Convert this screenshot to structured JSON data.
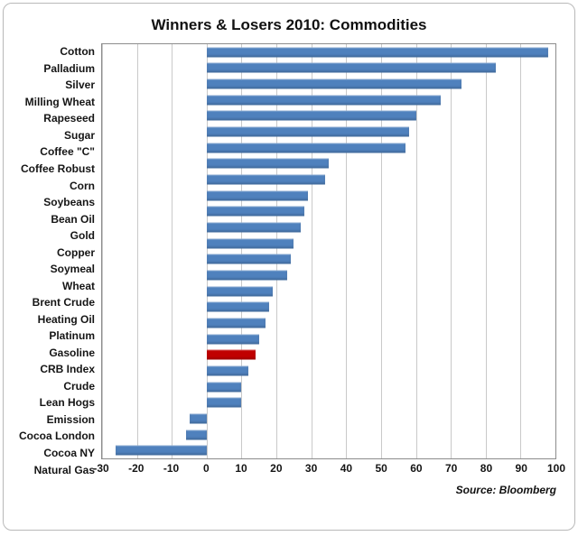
{
  "colors": {
    "bar": "#4f81bd",
    "highlight": "#c00000",
    "gridline": "#c9c9c9"
  },
  "chart_data": {
    "type": "bar",
    "orientation": "horizontal",
    "title": "Winners & Losers 2010: Commodities",
    "source": "Source: Bloomberg",
    "xlabel": "",
    "ylabel": "",
    "xlim": [
      -30,
      100
    ],
    "xticks": [
      -30,
      -20,
      -10,
      0,
      10,
      20,
      30,
      40,
      50,
      60,
      70,
      80,
      90,
      100
    ],
    "grid": true,
    "highlight_category": "CRB Index",
    "categories": [
      "Cotton",
      "Palladium",
      "Silver",
      "Milling Wheat",
      "Rapeseed",
      "Sugar",
      "Coffee \"C\"",
      "Coffee Robust",
      "Corn",
      "Soybeans",
      "Bean Oil",
      "Gold",
      "Copper",
      "Soymeal",
      "Wheat",
      "Brent Crude",
      "Heating Oil",
      "Platinum",
      "Gasoline",
      "CRB Index",
      "Crude",
      "Lean Hogs",
      "Emission",
      "Cocoa London",
      "Cocoa NY",
      "Natural Gas"
    ],
    "values": [
      98,
      83,
      73,
      67,
      60,
      58,
      57,
      35,
      34,
      29,
      28,
      27,
      25,
      24,
      23,
      19,
      18,
      17,
      15,
      14,
      12,
      10,
      10,
      -5,
      -6,
      -26
    ]
  }
}
